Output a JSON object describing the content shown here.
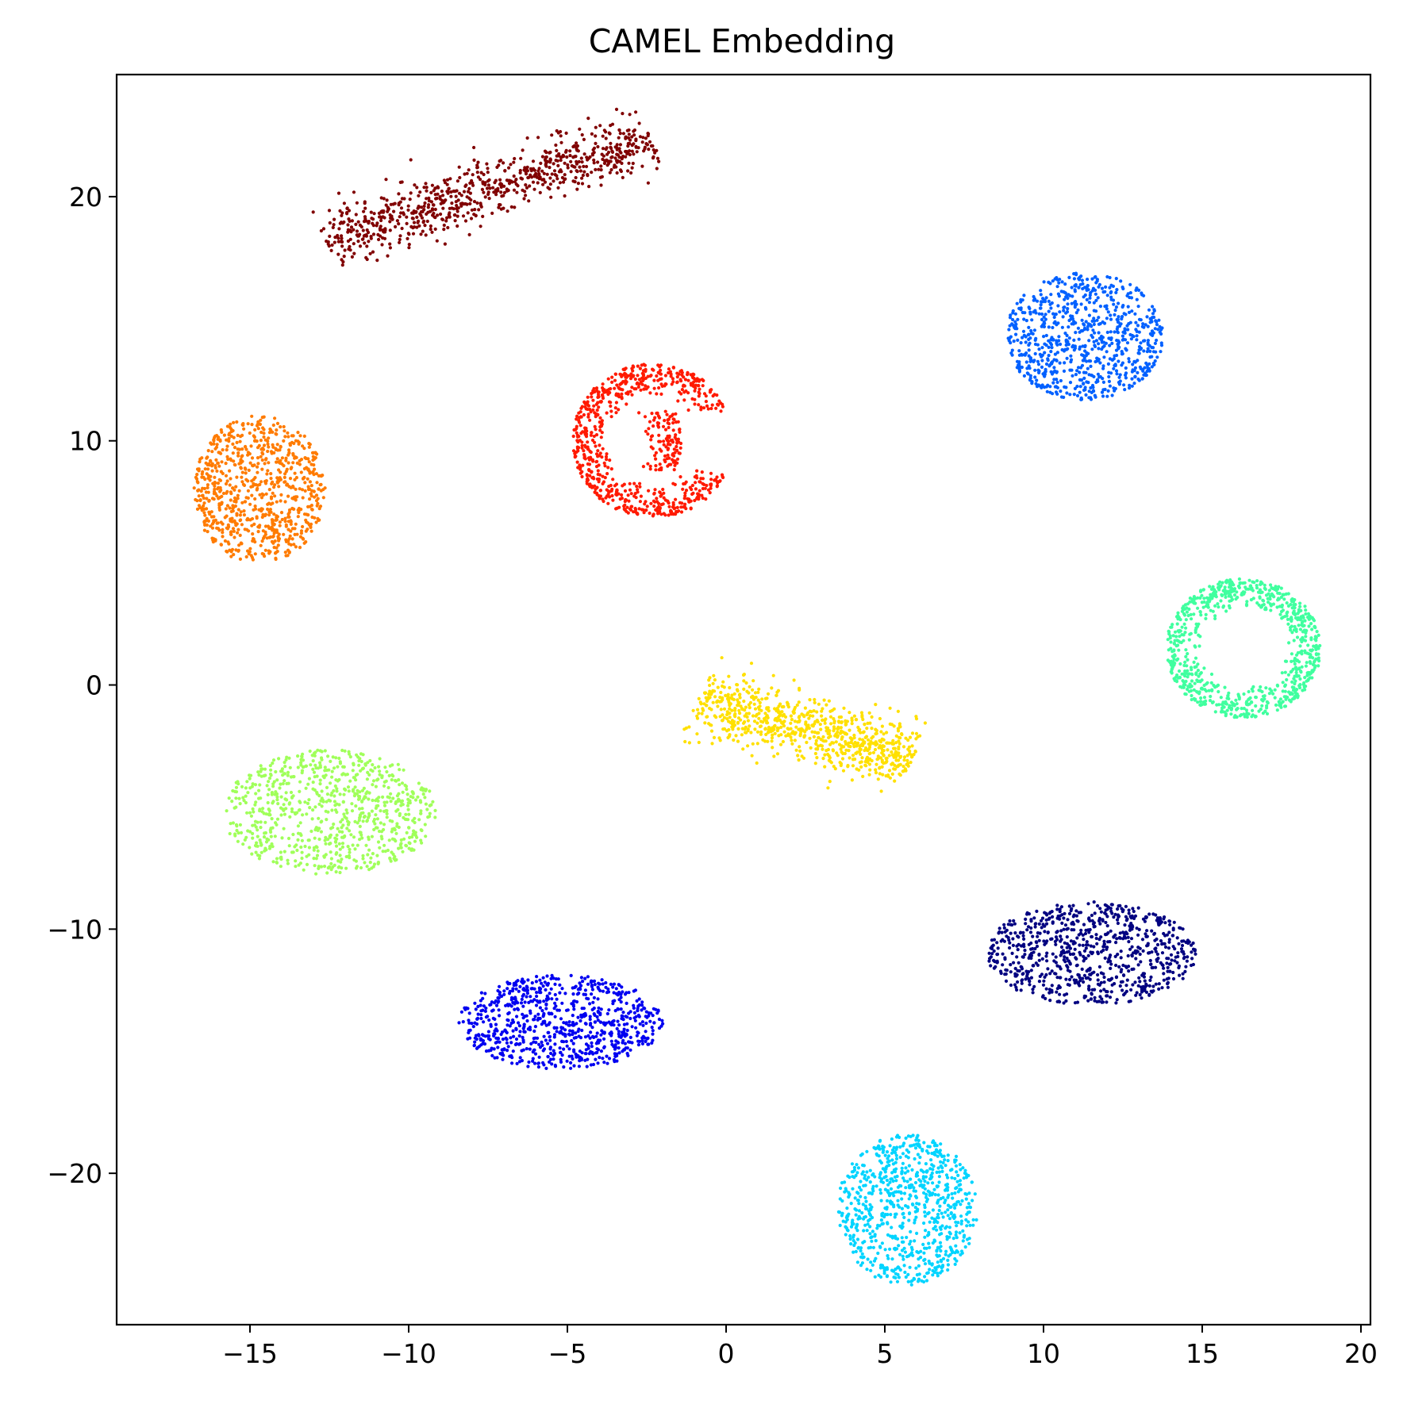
{
  "chart_data": {
    "type": "scatter",
    "title": "CAMEL Embedding",
    "xlabel": "",
    "ylabel": "",
    "xlim": [
      -19.2,
      20.3
    ],
    "ylim": [
      -26.2,
      25.0
    ],
    "xticks": [
      -15,
      -10,
      -5,
      0,
      5,
      10,
      15,
      20
    ],
    "yticks": [
      -20,
      -10,
      0,
      10,
      20
    ],
    "xtick_labels": [
      "−15",
      "−10",
      "−5",
      "0",
      "5",
      "10",
      "15",
      "20"
    ],
    "ytick_labels": [
      "−20",
      "−10",
      "0",
      "10",
      "20"
    ],
    "grid": false,
    "legend": "none",
    "colormap": "jet",
    "clusters": [
      {
        "color": "#800000",
        "points_approx": 1000,
        "center": [
          -7.5,
          20.3
        ],
        "extent_x": [
          -13.3,
          -1.2
        ],
        "extent_y": [
          18.0,
          22.6
        ],
        "orientation_deg": 22,
        "note": "elongated band"
      },
      {
        "color": "#0060ff",
        "points_approx": 1000,
        "center": [
          11.3,
          14.3
        ],
        "extent_x": [
          8.6,
          14.0
        ],
        "extent_y": [
          11.5,
          17.2
        ],
        "orientation_deg": 0,
        "note": "blob"
      },
      {
        "color": "#ff1a00",
        "points_approx": 1000,
        "center": [
          -2.3,
          10.0
        ],
        "extent_x": [
          -4.7,
          0.8
        ],
        "extent_y": [
          6.8,
          13.7
        ],
        "orientation_deg": 0,
        "note": "C-shaped"
      },
      {
        "color": "#ff7b00",
        "points_approx": 1000,
        "center": [
          -14.7,
          8.0
        ],
        "extent_x": [
          -17.2,
          -12.7
        ],
        "extent_y": [
          5.2,
          11.8
        ],
        "orientation_deg": 0,
        "note": "blob"
      },
      {
        "color": "#40ff9f",
        "points_approx": 1000,
        "center": [
          16.3,
          1.5
        ],
        "extent_x": [
          13.3,
          18.6
        ],
        "extent_y": [
          -1.6,
          4.6
        ],
        "orientation_deg": 0,
        "note": "ring-like"
      },
      {
        "color": "#ffe000",
        "points_approx": 1000,
        "center": [
          2.5,
          -1.8
        ],
        "extent_x": [
          -1.3,
          5.2
        ],
        "extent_y": [
          -4.9,
          0.4
        ],
        "orientation_deg": -20,
        "note": "triangle"
      },
      {
        "color": "#a0ff5a",
        "points_approx": 1000,
        "center": [
          -12.5,
          -5.2
        ],
        "extent_x": [
          -16.5,
          -9.2
        ],
        "extent_y": [
          -8.0,
          -2.4
        ],
        "orientation_deg": 0,
        "note": "arc"
      },
      {
        "color": "#000080",
        "points_approx": 1000,
        "center": [
          11.5,
          -11.0
        ],
        "extent_x": [
          7.8,
          15.0
        ],
        "extent_y": [
          -14.0,
          -9.4
        ],
        "orientation_deg": 0,
        "note": "wedge"
      },
      {
        "color": "#0000f0",
        "points_approx": 1000,
        "center": [
          -5.2,
          -13.8
        ],
        "extent_x": [
          -8.6,
          -1.6
        ],
        "extent_y": [
          -15.8,
          -11.6
        ],
        "orientation_deg": 0,
        "note": "blob"
      },
      {
        "color": "#00d4ff",
        "points_approx": 1000,
        "center": [
          5.7,
          -21.5
        ],
        "extent_x": [
          3.0,
          7.8
        ],
        "extent_y": [
          -24.0,
          -17.3
        ],
        "orientation_deg": 0,
        "note": "teardrop"
      }
    ]
  }
}
